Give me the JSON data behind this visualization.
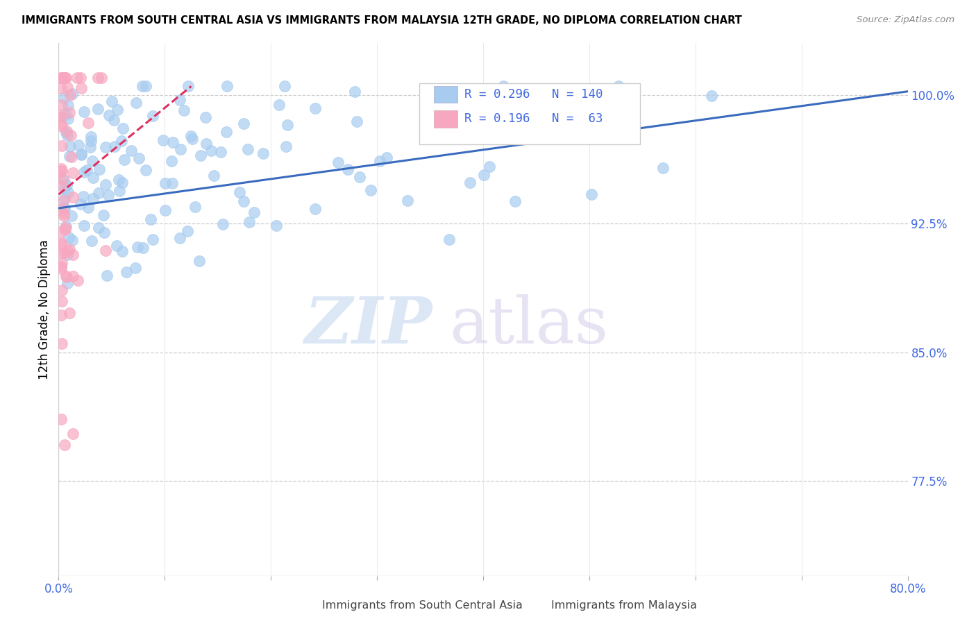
{
  "title": "IMMIGRANTS FROM SOUTH CENTRAL ASIA VS IMMIGRANTS FROM MALAYSIA 12TH GRADE, NO DIPLOMA CORRELATION CHART",
  "source": "Source: ZipAtlas.com",
  "ylabel": "12th Grade, No Diploma",
  "yticks": [
    "100.0%",
    "92.5%",
    "85.0%",
    "77.5%"
  ],
  "ytick_values": [
    1.0,
    0.925,
    0.85,
    0.775
  ],
  "xmin": 0.0,
  "xmax": 0.8,
  "ymin": 0.72,
  "ymax": 1.03,
  "R_blue": 0.296,
  "N_blue": 140,
  "R_pink": 0.196,
  "N_pink": 63,
  "color_blue": "#a8ccf0",
  "color_blue_edge": "#a8ccf0",
  "color_blue_line": "#3a6bbf",
  "color_pink": "#f7a8c0",
  "color_pink_edge": "#f7a8c0",
  "color_pink_line": "#e03060",
  "color_axis": "#4169E1",
  "legend_label_blue": "Immigrants from South Central Asia",
  "legend_label_pink": "Immigrants from Malaysia",
  "watermark_zip": "ZIP",
  "watermark_atlas": "atlas",
  "blue_line_x": [
    0.0,
    0.8
  ],
  "blue_line_y": [
    0.934,
    1.002
  ],
  "pink_line_x": [
    0.0,
    0.125
  ],
  "pink_line_y": [
    0.942,
    1.005
  ]
}
